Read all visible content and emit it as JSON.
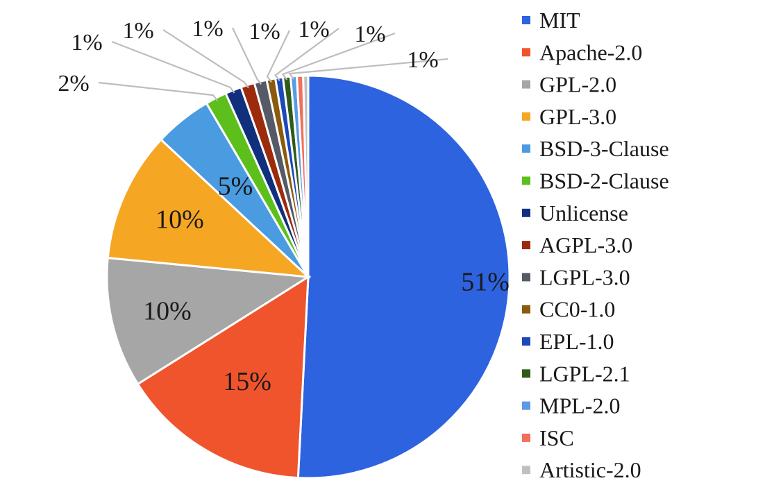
{
  "chart_data": {
    "type": "pie",
    "title": "",
    "categories": [
      "MIT",
      "Apache-2.0",
      "GPL-2.0",
      "GPL-3.0",
      "BSD-3-Clause",
      "BSD-2-Clause",
      "Unlicense",
      "AGPL-3.0",
      "LGPL-3.0",
      "CC0-1.0",
      "EPL-1.0",
      "LGPL-2.1",
      "MPL-2.0",
      "ISC",
      "Artistic-2.0"
    ],
    "values": [
      50.6,
      15.2,
      10.4,
      10.4,
      4.6,
      1.7,
      1.3,
      1.1,
      1.0,
      0.7,
      0.6,
      0.6,
      0.5,
      0.5,
      0.4
    ],
    "labels": [
      "51%",
      "15%",
      "10%",
      "10%",
      "5%",
      "2%",
      "1%",
      "1%",
      "1%",
      "1%",
      "1%",
      "1%",
      "1%",
      "",
      ""
    ],
    "colors": [
      "#2e63e0",
      "#f0542d",
      "#a6a6a6",
      "#f5a623",
      "#4a9be0",
      "#5cbf1c",
      "#10307e",
      "#9c2a0c",
      "#555a66",
      "#8b5a0c",
      "#1c49b8",
      "#2f5a17",
      "#5a9ae6",
      "#f0705a",
      "#c0c0c0"
    ],
    "legend_position": "right",
    "start_angle_deg": 0,
    "direction": "clockwise"
  }
}
